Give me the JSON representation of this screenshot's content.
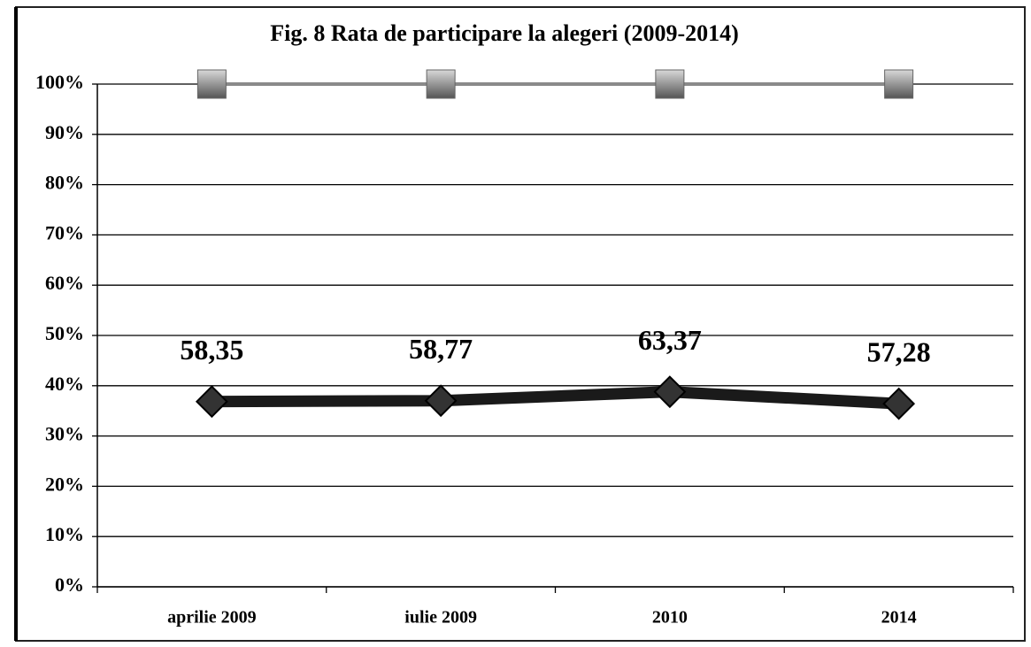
{
  "chart_data": {
    "type": "line",
    "stacking": "percent",
    "title": "Fig. 8 Rata de participare la alegeri (2009-2014)",
    "categories": [
      "aprilie 2009",
      "iulie 2009",
      "2010",
      "2014"
    ],
    "series": [
      {
        "color": "#1a1a1a",
        "marker": "diamond",
        "values": [
          58.35,
          58.77,
          63.37,
          57.28
        ],
        "value_labels": [
          "58,35",
          "58,77",
          "63,37",
          "57,28"
        ]
      },
      {
        "color": "#8a8a8a",
        "marker": "square",
        "values": [
          100,
          100,
          100,
          100
        ]
      }
    ],
    "ylim": [
      0,
      100
    ],
    "yticks": [
      {
        "value": 0,
        "label": "0%"
      },
      {
        "value": 10,
        "label": "10%"
      },
      {
        "value": 20,
        "label": "20%"
      },
      {
        "value": 30,
        "label": "30%"
      },
      {
        "value": 40,
        "label": "40%"
      },
      {
        "value": 50,
        "label": "50%"
      },
      {
        "value": 60,
        "label": "60%"
      },
      {
        "value": 70,
        "label": "70%"
      },
      {
        "value": 80,
        "label": "80%"
      },
      {
        "value": 90,
        "label": "90%"
      },
      {
        "value": 100,
        "label": "100%"
      }
    ],
    "grid": true
  }
}
